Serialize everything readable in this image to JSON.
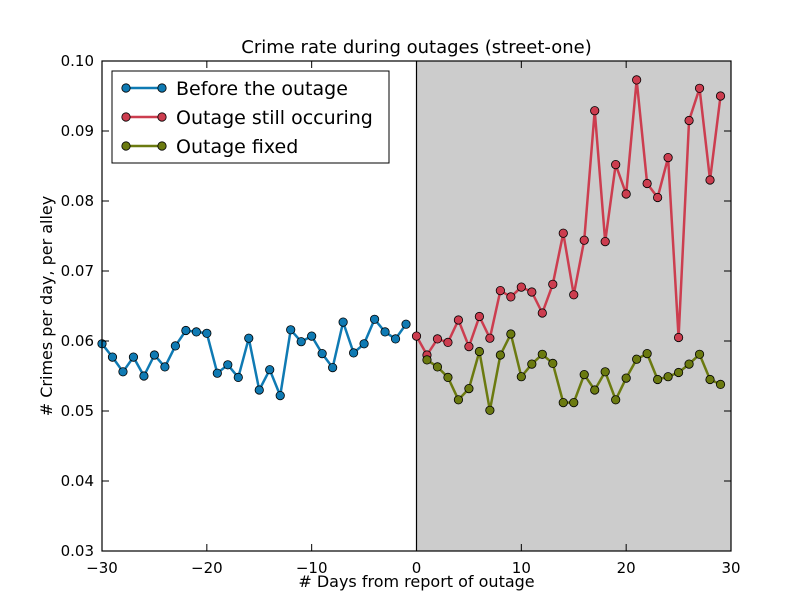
{
  "chart_data": {
    "type": "line",
    "title": "Crime rate during outages (street-one)",
    "xlabel": "# Days from report of outage",
    "ylabel": "# Crimes per day, per alley",
    "xlim": [
      -30,
      30
    ],
    "ylim": [
      0.03,
      0.1
    ],
    "x_ticks": [
      -30,
      -20,
      -10,
      0,
      10,
      20,
      30
    ],
    "x_tick_labels": [
      "−30",
      "−20",
      "−10",
      "0",
      "10",
      "20",
      "30"
    ],
    "y_ticks": [
      0.03,
      0.04,
      0.05,
      0.06,
      0.07,
      0.08,
      0.09,
      0.1
    ],
    "y_tick_labels": [
      "0.03",
      "0.04",
      "0.05",
      "0.06",
      "0.07",
      "0.08",
      "0.09",
      "0.10"
    ],
    "grid": false,
    "legend_position": "top-left",
    "shaded_region": {
      "x": [
        0,
        30
      ],
      "color": "#cccccc"
    },
    "vertical_line_x": 0,
    "series": [
      {
        "name": "Before the outage",
        "color": "#0f7ab3",
        "x": [
          -30,
          -29,
          -28,
          -27,
          -26,
          -25,
          -24,
          -23,
          -22,
          -21,
          -20,
          -19,
          -18,
          -17,
          -16,
          -15,
          -14,
          -13,
          -12,
          -11,
          -10,
          -9,
          -8,
          -7,
          -6,
          -5,
          -4,
          -3,
          -2,
          -1
        ],
        "y": [
          0.0596,
          0.0577,
          0.0556,
          0.0577,
          0.055,
          0.058,
          0.0563,
          0.0593,
          0.0615,
          0.0613,
          0.0611,
          0.0554,
          0.0566,
          0.0548,
          0.0604,
          0.053,
          0.0559,
          0.0522,
          0.0616,
          0.0599,
          0.0607,
          0.0582,
          0.0562,
          0.0627,
          0.0583,
          0.0596,
          0.0631,
          0.0613,
          0.0603,
          0.0624
        ]
      },
      {
        "name": "Outage still occuring",
        "color": "#cc3d4f",
        "x": [
          0,
          1,
          2,
          3,
          4,
          5,
          6,
          7,
          8,
          9,
          10,
          11,
          12,
          13,
          14,
          15,
          16,
          17,
          18,
          19,
          20,
          21,
          22,
          23,
          24,
          25,
          26,
          27,
          28,
          29
        ],
        "y": [
          0.0607,
          0.058,
          0.0603,
          0.0598,
          0.063,
          0.0592,
          0.0635,
          0.0604,
          0.0672,
          0.0663,
          0.0677,
          0.067,
          0.064,
          0.0681,
          0.0754,
          0.0666,
          0.0744,
          0.0929,
          0.0742,
          0.0852,
          0.081,
          0.0973,
          0.0825,
          0.0805,
          0.0862,
          0.0605,
          0.0915,
          0.0961,
          0.083,
          0.095
        ]
      },
      {
        "name": "Outage fixed",
        "color": "#6b7a10",
        "x": [
          1,
          2,
          3,
          4,
          5,
          6,
          7,
          8,
          9,
          10,
          11,
          12,
          13,
          14,
          15,
          16,
          17,
          18,
          19,
          20,
          21,
          22,
          23,
          24,
          25,
          26,
          27,
          28,
          29
        ],
        "y": [
          0.0573,
          0.0563,
          0.0548,
          0.0516,
          0.0532,
          0.0585,
          0.0501,
          0.058,
          0.061,
          0.0549,
          0.0567,
          0.0581,
          0.0568,
          0.0512,
          0.0512,
          0.0552,
          0.053,
          0.0556,
          0.0516,
          0.0547,
          0.0574,
          0.0582,
          0.0545,
          0.0549,
          0.0555,
          0.0567,
          0.0581,
          0.0545,
          0.0538
        ]
      }
    ]
  }
}
